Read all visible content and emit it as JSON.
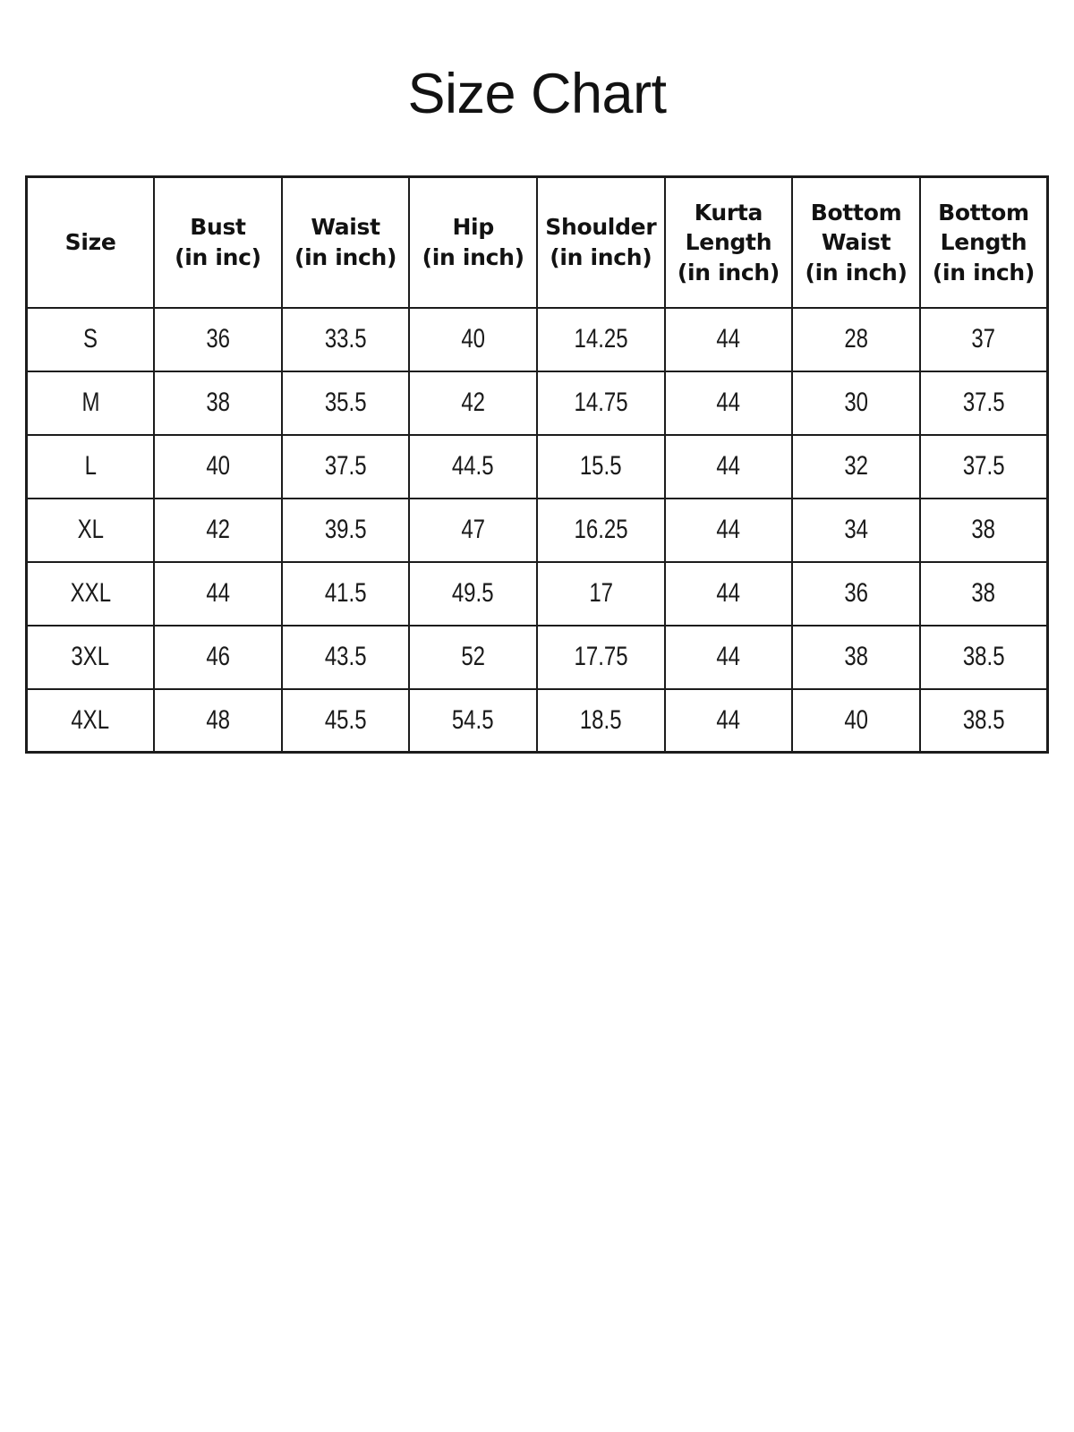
{
  "page": {
    "title": "Size Chart",
    "background_color": "#ffffff",
    "border_color": "#1c1c1c",
    "text_color": "#121212"
  },
  "table": {
    "columns": [
      "Size",
      "Bust\n(in inc)",
      "Waist\n(in inch)",
      "Hip\n(in inch)",
      "Shoulder\n(in inch)",
      "Kurta\nLength\n(in inch)",
      "Bottom\nWaist\n(in inch)",
      "Bottom\nLength\n(in inch)"
    ],
    "rows": [
      [
        "S",
        "36",
        "33.5",
        "40",
        "14.25",
        "44",
        "28",
        "37"
      ],
      [
        "M",
        "38",
        "35.5",
        "42",
        "14.75",
        "44",
        "30",
        "37.5"
      ],
      [
        "L",
        "40",
        "37.5",
        "44.5",
        "15.5",
        "44",
        "32",
        "37.5"
      ],
      [
        "XL",
        "42",
        "39.5",
        "47",
        "16.25",
        "44",
        "34",
        "38"
      ],
      [
        "XXL",
        "44",
        "41.5",
        "49.5",
        "17",
        "44",
        "36",
        "38"
      ],
      [
        "3XL",
        "46",
        "43.5",
        "52",
        "17.75",
        "44",
        "38",
        "38.5"
      ],
      [
        "4XL",
        "48",
        "45.5",
        "54.5",
        "18.5",
        "44",
        "40",
        "38.5"
      ]
    ]
  }
}
